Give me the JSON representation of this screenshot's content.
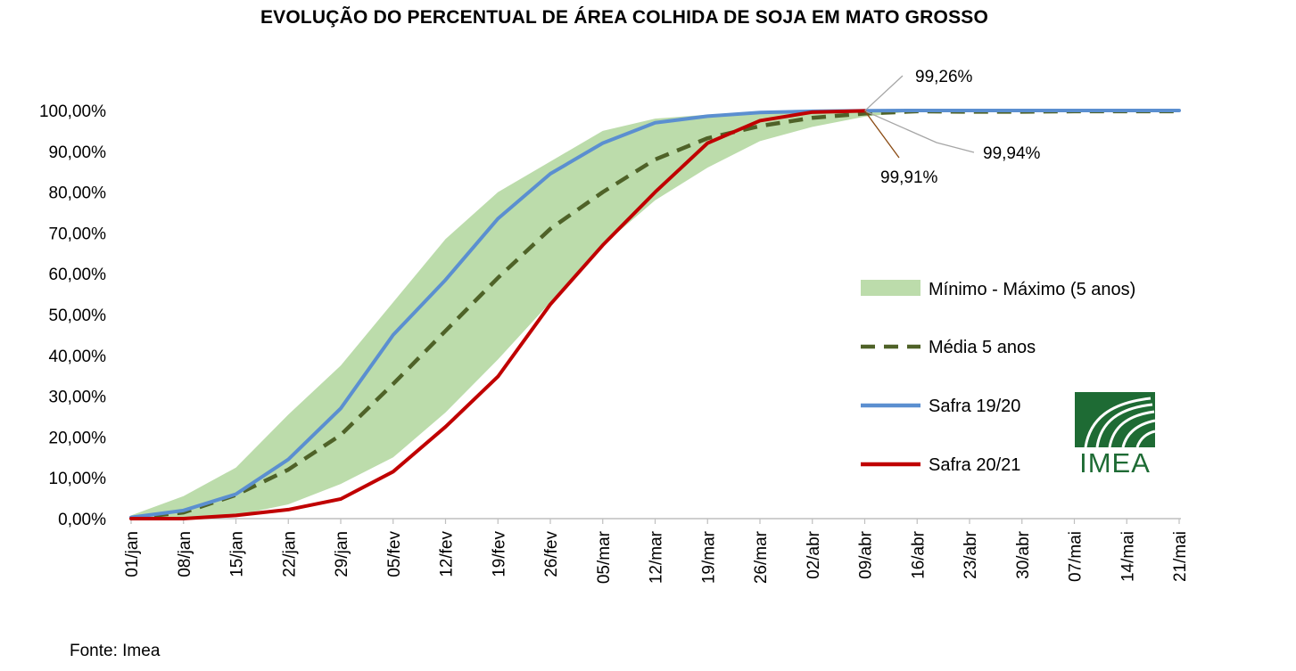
{
  "chart_data": {
    "type": "line",
    "title": "EVOLUÇÃO DO PERCENTUAL DE ÁREA COLHIDA DE SOJA EM MATO GROSSO",
    "xlabel": "",
    "ylabel": "",
    "categories": [
      "01/jan",
      "08/jan",
      "15/jan",
      "22/jan",
      "29/jan",
      "05/fev",
      "12/fev",
      "19/fev",
      "26/fev",
      "05/mar",
      "12/mar",
      "19/mar",
      "26/mar",
      "02/abr",
      "09/abr",
      "16/abr",
      "23/abr",
      "30/abr",
      "07/mai",
      "14/mai",
      "21/mai"
    ],
    "ylim": [
      0,
      100
    ],
    "yticks": [
      "0,00%",
      "10,00%",
      "20,00%",
      "30,00%",
      "40,00%",
      "50,00%",
      "60,00%",
      "70,00%",
      "80,00%",
      "90,00%",
      "100,00%"
    ],
    "band": {
      "name": "Mínimo - Máximo (5 anos)",
      "color": "#bcdcab",
      "min": [
        0,
        0,
        0.8,
        3.5,
        8.5,
        15,
        26,
        39,
        53,
        67,
        78,
        86,
        92.5,
        96,
        98.5,
        99.9,
        100,
        100,
        100,
        100,
        100
      ],
      "max": [
        0.8,
        5.5,
        12.5,
        25.5,
        37.5,
        53,
        68.5,
        80,
        87.5,
        95,
        98,
        99,
        99.5,
        99.8,
        99.95,
        100,
        100,
        100,
        100,
        100,
        100
      ]
    },
    "series": [
      {
        "name": "Média 5 anos",
        "color": "#4f6228",
        "style": "dashed",
        "values": [
          0.2,
          1.5,
          5.8,
          12,
          20.5,
          33,
          46,
          59,
          71,
          80,
          88,
          93.2,
          96.2,
          98.2,
          99.26,
          99.8,
          99.7,
          99.7,
          99.8,
          99.8,
          99.8
        ]
      },
      {
        "name": "Safra 19/20",
        "color": "#5b8fd0",
        "style": "solid",
        "values": [
          0.3,
          2,
          6,
          14.5,
          27,
          45,
          58.5,
          73.5,
          84.5,
          92,
          97,
          98.6,
          99.5,
          99.8,
          99.94,
          100,
          100,
          100,
          100,
          100,
          100
        ]
      },
      {
        "name": "Safra 20/21",
        "color": "#c00000",
        "style": "solid",
        "values": [
          0,
          0,
          0.8,
          2.2,
          4.8,
          11.5,
          22.5,
          34.8,
          52.5,
          67,
          80,
          92,
          97.5,
          99.6,
          99.91,
          null,
          null,
          null,
          null,
          null,
          null
        ]
      }
    ],
    "annotations": [
      "99,26%",
      "99,94%",
      "99,91%"
    ],
    "legend_position": "right",
    "grid": false
  },
  "logo": {
    "text": "IMEA",
    "color": "#1e6b34"
  },
  "source": "Fonte: Imea"
}
